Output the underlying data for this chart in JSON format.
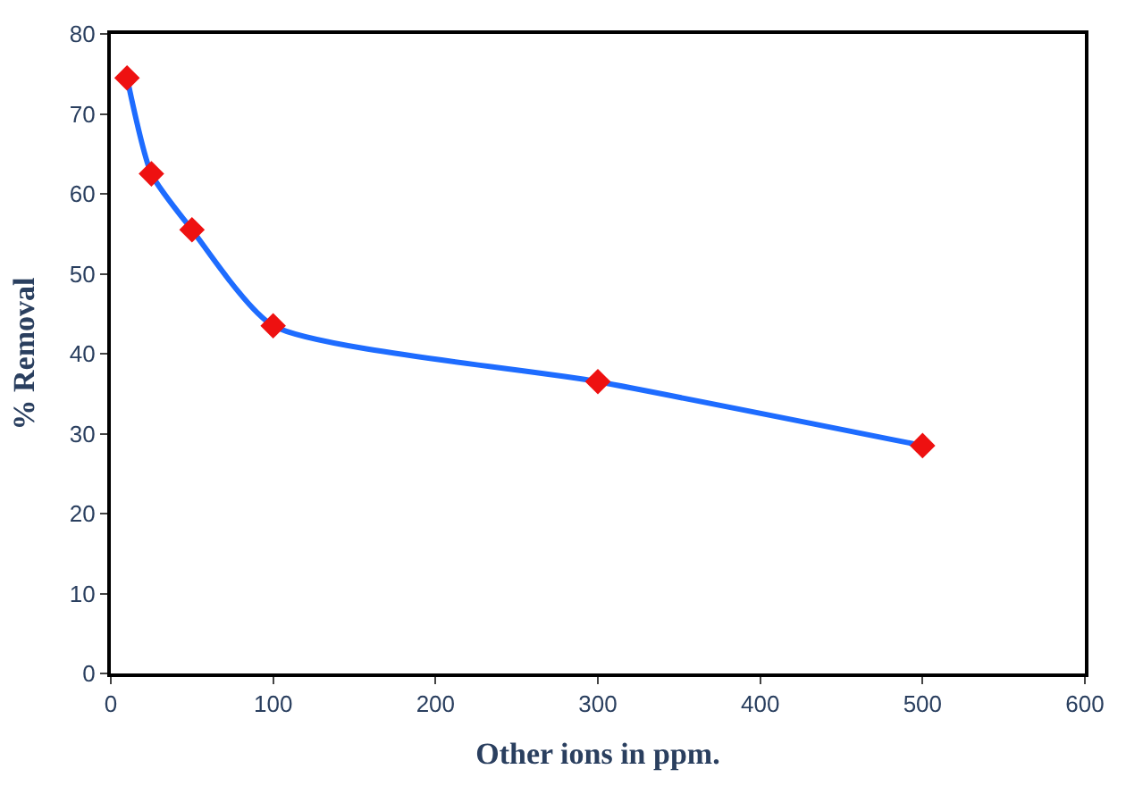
{
  "chart_data": {
    "type": "line",
    "xlabel": "Other ions in ppm.",
    "ylabel": "% Removal",
    "x": [
      10,
      25,
      50,
      100,
      300,
      500
    ],
    "series": [
      {
        "color": "#1e6cff",
        "values": [
          74.5,
          62.5,
          55.5,
          43.5,
          36.5,
          28.5
        ]
      }
    ],
    "marker": "diamond",
    "line_style": "solid",
    "legend": false,
    "xlim": [
      0,
      600
    ],
    "xticks": [
      0,
      100,
      200,
      300,
      400,
      500,
      600
    ],
    "ylim": [
      0,
      80
    ],
    "yticks": [
      0,
      10,
      20,
      30,
      40,
      50,
      60,
      70,
      80
    ]
  }
}
